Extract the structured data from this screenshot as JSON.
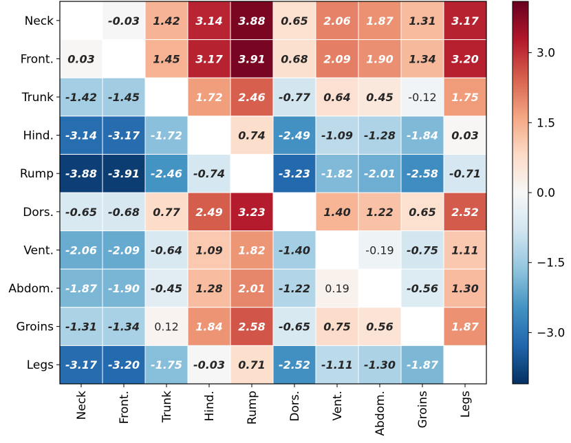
{
  "chart_data": {
    "type": "heatmap",
    "title": "",
    "xlabel": "",
    "ylabel": "",
    "rows": [
      "Neck",
      "Front.",
      "Trunk",
      "Hind.",
      "Rump",
      "Dors.",
      "Vent.",
      "Abdom.",
      "Groins",
      "Legs"
    ],
    "columns": [
      "Neck",
      "Front.",
      "Trunk",
      "Hind.",
      "Rump",
      "Dors.",
      "Vent.",
      "Abdom.",
      "Groins",
      "Legs"
    ],
    "values": [
      [
        null,
        -0.03,
        1.42,
        3.14,
        3.88,
        0.65,
        2.06,
        1.87,
        1.31,
        3.17
      ],
      [
        0.03,
        null,
        1.45,
        3.17,
        3.91,
        0.68,
        2.09,
        1.9,
        1.34,
        3.2
      ],
      [
        -1.42,
        -1.45,
        null,
        1.72,
        2.46,
        -0.77,
        0.64,
        0.45,
        -0.12,
        1.75
      ],
      [
        -3.14,
        -3.17,
        -1.72,
        null,
        0.74,
        -2.49,
        -1.09,
        -1.28,
        -1.84,
        0.03
      ],
      [
        -3.88,
        -3.91,
        -2.46,
        -0.74,
        null,
        -3.23,
        -1.82,
        -2.01,
        -2.58,
        -0.71
      ],
      [
        -0.65,
        -0.68,
        0.77,
        2.49,
        3.23,
        null,
        1.4,
        1.22,
        0.65,
        2.52
      ],
      [
        -2.06,
        -2.09,
        -0.64,
        1.09,
        1.82,
        -1.4,
        null,
        -0.19,
        -0.75,
        1.11
      ],
      [
        -1.87,
        -1.9,
        -0.45,
        1.28,
        2.01,
        -1.22,
        0.19,
        null,
        -0.56,
        1.3
      ],
      [
        -1.31,
        -1.34,
        0.12,
        1.84,
        2.58,
        -0.65,
        0.75,
        0.56,
        null,
        1.87
      ],
      [
        -3.17,
        -3.2,
        -1.75,
        -0.03,
        0.71,
        -2.52,
        -1.11,
        -1.3,
        -1.87,
        null
      ]
    ],
    "labels": [
      [
        "",
        "-0.03",
        "1.42",
        "3.14",
        "3.88",
        "0.65",
        "2.06",
        "1.87",
        "1.31",
        "3.17"
      ],
      [
        "0.03",
        "",
        "1.45",
        "3.17",
        "3.91",
        "0.68",
        "2.09",
        "1.90",
        "1.34",
        "3.20"
      ],
      [
        "-1.42",
        "-1.45",
        "",
        "1.72",
        "2.46",
        "-0.77",
        "0.64",
        "0.45",
        "-0.12",
        "1.75"
      ],
      [
        "-3.14",
        "-3.17",
        "-1.72",
        "",
        "0.74",
        "-2.49",
        "-1.09",
        "-1.28",
        "-1.84",
        "0.03"
      ],
      [
        "-3.88",
        "-3.91",
        "-2.46",
        "-0.74",
        "",
        "-3.23",
        "-1.82",
        "-2.01",
        "-2.58",
        "-0.71"
      ],
      [
        "-0.65",
        "-0.68",
        "0.77",
        "2.49",
        "3.23",
        "",
        "1.40",
        "1.22",
        "0.65",
        "2.52"
      ],
      [
        "-2.06",
        "-2.09",
        "-0.64",
        "1.09",
        "1.82",
        "-1.40",
        "",
        "-0.19",
        "-0.75",
        "1.11"
      ],
      [
        "-1.87",
        "-1.90",
        "-0.45",
        "1.28",
        "2.01",
        "-1.22",
        "0.19",
        "",
        "-0.56",
        "1.30"
      ],
      [
        "-1.31",
        "-1.34",
        "0.12",
        "1.84",
        "2.58",
        "-0.65",
        "0.75",
        "0.56",
        "",
        "1.87"
      ],
      [
        "-3.17",
        "-3.20",
        "-1.75",
        "-0.03",
        "0.71",
        "-2.52",
        "-1.11",
        "-1.30",
        "-1.87",
        ""
      ]
    ],
    "bold": [
      [
        false,
        true,
        true,
        true,
        true,
        true,
        true,
        true,
        true,
        true
      ],
      [
        true,
        false,
        true,
        true,
        true,
        true,
        true,
        true,
        true,
        true
      ],
      [
        true,
        true,
        false,
        true,
        true,
        true,
        true,
        true,
        false,
        true
      ],
      [
        true,
        true,
        true,
        false,
        true,
        true,
        true,
        true,
        true,
        true
      ],
      [
        true,
        true,
        true,
        true,
        false,
        true,
        true,
        true,
        true,
        true
      ],
      [
        true,
        true,
        true,
        true,
        true,
        false,
        true,
        true,
        true,
        true
      ],
      [
        true,
        true,
        true,
        true,
        true,
        true,
        false,
        false,
        true,
        true
      ],
      [
        true,
        true,
        true,
        true,
        true,
        true,
        false,
        false,
        true,
        true
      ],
      [
        true,
        true,
        false,
        true,
        true,
        true,
        true,
        true,
        false,
        true
      ],
      [
        true,
        true,
        true,
        true,
        true,
        true,
        true,
        true,
        true,
        false
      ]
    ],
    "colorbar": {
      "range": [
        -4.1,
        4.1
      ],
      "ticks": [
        3.0,
        1.5,
        0.0,
        -1.5,
        -3.0
      ],
      "tick_labels": [
        "3.0",
        "1.5",
        "0.0",
        "−1.5",
        "−3.0"
      ],
      "colormap": "RdBu_r"
    }
  },
  "colors": {
    "cmap_stops": [
      "#053061",
      "#2166ac",
      "#4393c3",
      "#92c5de",
      "#d1e5f0",
      "#f7f7f7",
      "#fddbc7",
      "#f4a582",
      "#d6604d",
      "#b2182b",
      "#67001f"
    ],
    "empty_cell": "#ffffff",
    "grid_line": "#ffffff",
    "frame": "#000000",
    "dark_text": "#262626",
    "light_text": "#ffffff"
  }
}
